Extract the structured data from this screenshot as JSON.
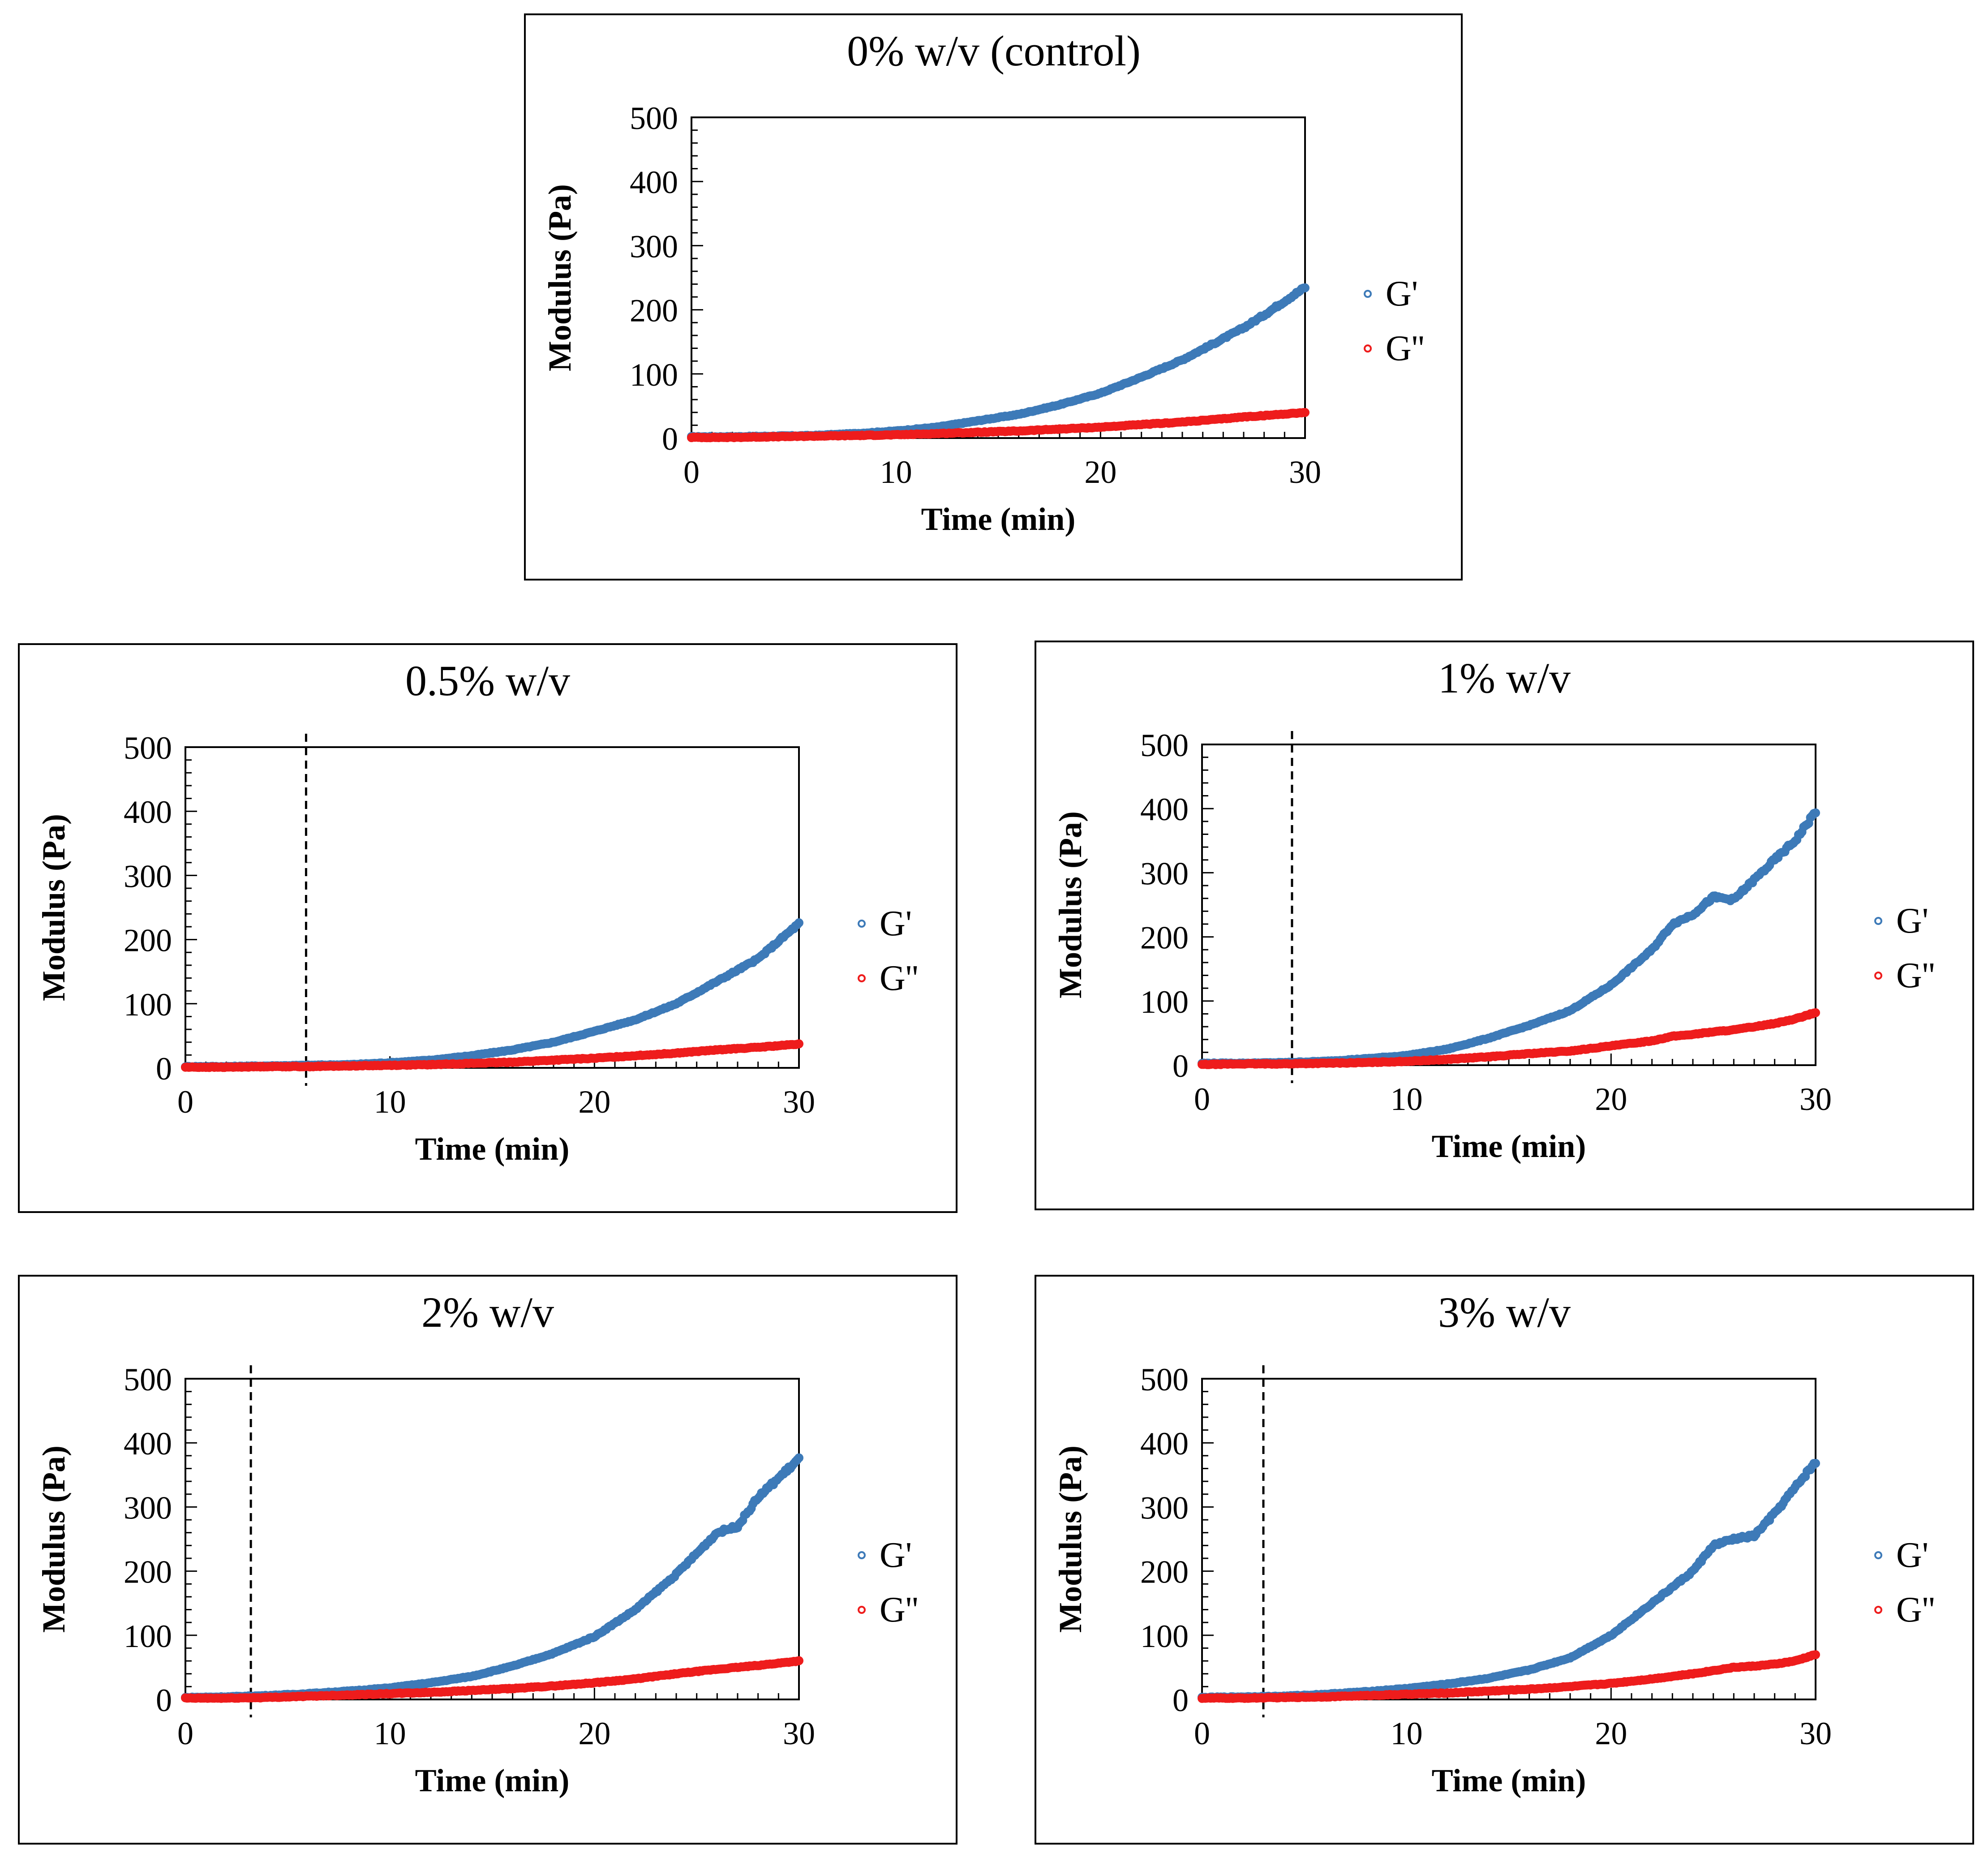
{
  "chart_data": [
    {
      "type": "scatter",
      "title": "0% w/v (control)",
      "xlabel": "Time (min)",
      "ylabel": "Modulus (Pa)",
      "xlim": [
        0,
        30
      ],
      "ylim": [
        0,
        500
      ],
      "xticks": [
        "0",
        "10",
        "20",
        "30"
      ],
      "yticks": [
        "0",
        "100",
        "200",
        "300",
        "400",
        "500"
      ],
      "grid": false,
      "legend_position": "right",
      "gel_point_line": null,
      "x": [
        0,
        2,
        4,
        6,
        8,
        10,
        12,
        14,
        16,
        18,
        20,
        22,
        24,
        26,
        27,
        28,
        30
      ],
      "series": [
        {
          "name": "G'",
          "color": "#3d7ab8",
          "values": [
            2,
            2,
            3,
            4,
            7,
            11,
            17,
            27,
            37,
            52,
            70,
            95,
            122,
            155,
            172,
            192,
            235
          ]
        },
        {
          "name": "G''",
          "color": "#ee1c1c",
          "values": [
            1,
            1,
            2,
            3,
            4,
            5,
            7,
            9,
            11,
            14,
            17,
            21,
            25,
            30,
            33,
            35,
            40
          ]
        }
      ]
    },
    {
      "type": "scatter",
      "title": "0.5% w/v",
      "xlabel": "Time (min)",
      "ylabel": "Modulus (Pa)",
      "xlim": [
        0,
        30
      ],
      "ylim": [
        0,
        500
      ],
      "xticks": [
        "0",
        "10",
        "20",
        "30"
      ],
      "yticks": [
        "0",
        "100",
        "200",
        "300",
        "400",
        "500"
      ],
      "grid": false,
      "legend_position": "right",
      "gel_point_line": 5.9,
      "x": [
        0,
        2,
        4,
        6,
        8,
        10,
        12,
        14,
        16,
        18,
        20,
        22,
        24,
        26,
        28,
        30
      ],
      "series": [
        {
          "name": "G'",
          "color": "#3d7ab8",
          "values": [
            2,
            2,
            3,
            4,
            5,
            8,
            12,
            19,
            28,
            40,
            57,
            75,
            100,
            135,
            170,
            225
          ]
        },
        {
          "name": "G''",
          "color": "#ee1c1c",
          "values": [
            1,
            1,
            2,
            2,
            3,
            4,
            5,
            7,
            9,
            12,
            15,
            19,
            23,
            28,
            32,
            37
          ]
        }
      ]
    },
    {
      "type": "scatter",
      "title": "1% w/v",
      "xlabel": "Time (min)",
      "ylabel": "Modulus (Pa)",
      "xlim": [
        0,
        30
      ],
      "ylim": [
        0,
        500
      ],
      "xticks": [
        "0",
        "10",
        "20",
        "30"
      ],
      "yticks": [
        "0",
        "100",
        "200",
        "300",
        "400",
        "500"
      ],
      "grid": false,
      "legend_position": "right",
      "gel_point_line": 4.4,
      "x": [
        0,
        2,
        4,
        6,
        8,
        10,
        12,
        14,
        16,
        18,
        20,
        22,
        23,
        24,
        25,
        26,
        28,
        29,
        30
      ],
      "series": [
        {
          "name": "G'",
          "color": "#3d7ab8",
          "values": [
            3,
            3,
            4,
            6,
            10,
            15,
            25,
            42,
            62,
            85,
            125,
            180,
            220,
            235,
            262,
            258,
            320,
            350,
            395
          ]
        },
        {
          "name": "G''",
          "color": "#ee1c1c",
          "values": [
            1,
            2,
            2,
            3,
            4,
            6,
            9,
            13,
            18,
            22,
            30,
            38,
            45,
            48,
            52,
            55,
            65,
            72,
            82
          ]
        }
      ]
    },
    {
      "type": "scatter",
      "title": "2% w/v",
      "xlabel": "Time (min)",
      "ylabel": "Modulus (Pa)",
      "xlim": [
        0,
        30
      ],
      "ylim": [
        0,
        500
      ],
      "xticks": [
        "0",
        "10",
        "20",
        "30"
      ],
      "yticks": [
        "0",
        "100",
        "200",
        "300",
        "400",
        "500"
      ],
      "grid": false,
      "legend_position": "right",
      "gel_point_line": 3.2,
      "x": [
        0,
        2,
        4,
        6,
        8,
        10,
        12,
        14,
        16,
        18,
        20,
        22,
        24,
        26,
        27,
        28,
        30
      ],
      "series": [
        {
          "name": "G'",
          "color": "#3d7ab8",
          "values": [
            3,
            4,
            6,
            9,
            13,
            18,
            26,
            36,
            52,
            72,
            98,
            140,
            195,
            260,
            270,
            315,
            375
          ]
        },
        {
          "name": "G''",
          "color": "#ee1c1c",
          "values": [
            2,
            2,
            3,
            5,
            7,
            9,
            11,
            14,
            17,
            21,
            26,
            32,
            40,
            47,
            50,
            53,
            60
          ]
        }
      ]
    },
    {
      "type": "scatter",
      "title": "3% w/v",
      "xlabel": "Time (min)",
      "ylabel": "Modulus (Pa)",
      "xlim": [
        0,
        30
      ],
      "ylim": [
        0,
        500
      ],
      "xticks": [
        "0",
        "10",
        "20",
        "30"
      ],
      "yticks": [
        "0",
        "100",
        "200",
        "300",
        "400",
        "500"
      ],
      "grid": false,
      "legend_position": "right",
      "gel_point_line": 3.0,
      "x": [
        0,
        2,
        4,
        6,
        8,
        10,
        12,
        14,
        16,
        18,
        20,
        22,
        24,
        25,
        26,
        27,
        28,
        29,
        30
      ],
      "series": [
        {
          "name": "G'",
          "color": "#3d7ab8",
          "values": [
            3,
            4,
            5,
            8,
            12,
            17,
            24,
            33,
            46,
            65,
            100,
            150,
            200,
            240,
            250,
            255,
            290,
            330,
            370
          ]
        },
        {
          "name": "G''",
          "color": "#ee1c1c",
          "values": [
            2,
            2,
            3,
            4,
            6,
            8,
            10,
            13,
            16,
            20,
            25,
            32,
            40,
            45,
            50,
            52,
            55,
            60,
            70
          ]
        }
      ]
    }
  ]
}
